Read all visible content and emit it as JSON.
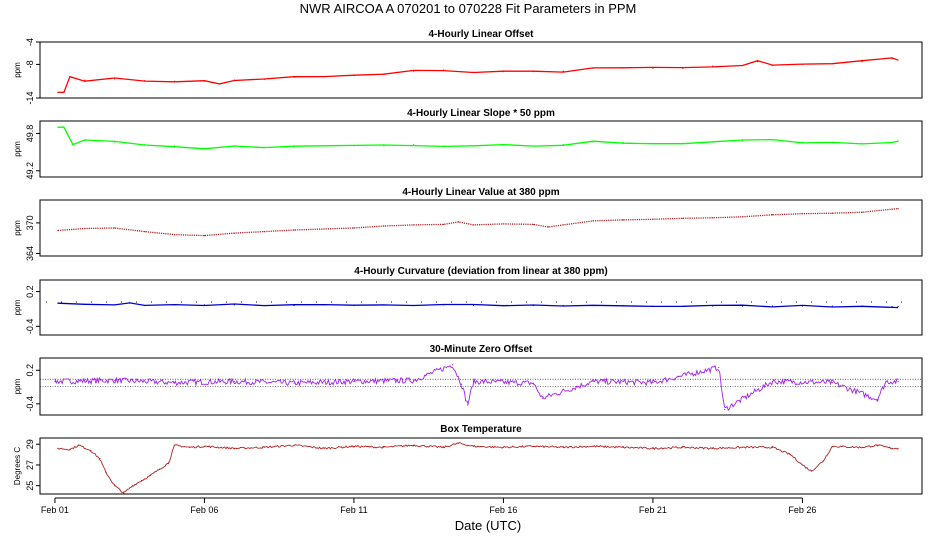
{
  "title": "NWR   AIRCOA A   070201 to 070228   Fit Parameters in PPM",
  "xlabel": "Date (UTC)",
  "chart_data": {
    "type": "line",
    "x_unit": "day of February 2007",
    "x_range": [
      -0.5,
      29.0
    ],
    "x_ticks": [
      {
        "label": "Feb 01",
        "value": 0
      },
      {
        "label": "Feb 06",
        "value": 5
      },
      {
        "label": "Feb 11",
        "value": 10
      },
      {
        "label": "Feb 16",
        "value": 15
      },
      {
        "label": "Feb 21",
        "value": 20
      },
      {
        "label": "Feb 26",
        "value": 25
      }
    ],
    "panels": [
      {
        "id": "linear-offset",
        "title": "4-Hourly Linear Offset",
        "ylabel": "ppm",
        "ylim": [
          -14,
          -4
        ],
        "yticks": [
          {
            "label": "-4",
            "value": -4
          },
          {
            "label": "-8",
            "value": -8
          },
          {
            "label": "-14",
            "value": -14
          }
        ],
        "color": "#ff0000",
        "style": "line",
        "x": [
          0.1,
          0.3,
          0.5,
          1,
          2,
          3,
          4,
          5,
          5.5,
          6,
          7,
          8,
          9,
          10,
          11,
          12,
          13,
          14,
          15,
          16,
          17,
          18,
          19,
          20,
          21,
          22,
          23,
          23.5,
          24,
          25,
          26,
          27,
          28,
          28.2
        ],
        "values": [
          -13.0,
          -13.0,
          -10.2,
          -10.8,
          -10.6,
          -10.9,
          -11.0,
          -11.0,
          -11.5,
          -10.8,
          -10.7,
          -10.3,
          -10.2,
          -10.0,
          -9.8,
          -9.2,
          -9.0,
          -9.4,
          -9.3,
          -9.3,
          -9.2,
          -8.7,
          -8.6,
          -8.7,
          -8.7,
          -8.3,
          -8.2,
          -7.5,
          -8.2,
          -8.0,
          -7.9,
          -7.5,
          -7.0,
          -7.2
        ]
      },
      {
        "id": "linear-slope",
        "title": "4-Hourly Linear Slope * 50 ppm",
        "ylabel": "ppm",
        "ylim": [
          49.1,
          50.0
        ],
        "yticks": [
          {
            "label": "49.8",
            "value": 49.8
          },
          {
            "label": "49.2",
            "value": 49.2
          }
        ],
        "color": "#00ff00",
        "style": "line",
        "x": [
          0.1,
          0.3,
          0.6,
          1,
          2,
          3,
          4,
          5,
          6,
          7,
          8,
          9,
          10,
          11,
          12,
          13,
          14,
          15,
          16,
          17,
          18,
          19,
          20,
          21,
          22,
          23,
          24,
          25,
          26,
          27,
          28,
          28.2
        ],
        "values": [
          49.9,
          49.9,
          49.62,
          49.7,
          49.66,
          49.62,
          49.6,
          49.56,
          49.6,
          49.58,
          49.58,
          49.6,
          49.6,
          49.6,
          49.62,
          49.6,
          49.6,
          49.62,
          49.6,
          49.62,
          49.66,
          49.66,
          49.64,
          49.64,
          49.66,
          49.68,
          49.7,
          49.66,
          49.66,
          49.64,
          49.66,
          49.68
        ]
      },
      {
        "id": "linear-value",
        "title": "4-Hourly Linear Value at 380 ppm",
        "ylabel": "ppm",
        "ylim": [
          363.5,
          374.5
        ],
        "yticks": [
          {
            "label": "370",
            "value": 370
          },
          {
            "label": "364",
            "value": 364
          }
        ],
        "color": "#b22222",
        "style": "dots",
        "x": [
          0.1,
          1,
          2,
          3,
          4,
          5,
          6,
          7,
          8,
          9,
          10,
          11,
          12,
          13,
          13.5,
          14,
          15,
          16,
          16.5,
          17,
          18,
          19,
          20,
          21,
          22,
          23,
          24,
          25,
          26,
          27,
          28,
          28.2
        ],
        "values": [
          368.5,
          368.9,
          369.0,
          368.3,
          367.7,
          367.5,
          368.0,
          368.3,
          368.6,
          368.8,
          369.0,
          369.4,
          369.6,
          369.7,
          370.2,
          369.6,
          369.8,
          369.7,
          369.2,
          369.6,
          370.4,
          370.6,
          370.7,
          370.9,
          371.0,
          371.2,
          371.6,
          371.8,
          371.9,
          372.1,
          372.7,
          372.8
        ]
      },
      {
        "id": "curvature",
        "title": "4-Hourly Curvature (deviation from linear at 380 ppm)",
        "ylabel": "ppm",
        "ylim": [
          -0.55,
          0.4
        ],
        "yticks": [
          {
            "label": "0.2",
            "value": 0.2
          },
          {
            "label": "-0.4",
            "value": -0.4
          }
        ],
        "color": "#0000cc",
        "style": "line",
        "reference_dotted": 0.02,
        "x": [
          0.1,
          1,
          2,
          2.5,
          3,
          4,
          5,
          6,
          7,
          8,
          9,
          10,
          11,
          12,
          13,
          14,
          15,
          16,
          17,
          18,
          19,
          20,
          21,
          22,
          23,
          24,
          25,
          26,
          27,
          28,
          28.2
        ],
        "values": [
          0.0,
          -0.02,
          -0.03,
          0.01,
          -0.04,
          -0.03,
          -0.03,
          -0.03,
          -0.04,
          -0.04,
          -0.03,
          -0.04,
          -0.03,
          -0.04,
          -0.03,
          -0.04,
          -0.04,
          -0.04,
          -0.04,
          -0.04,
          -0.04,
          -0.05,
          -0.05,
          -0.05,
          -0.05,
          -0.05,
          -0.05,
          -0.05,
          -0.05,
          -0.06,
          -0.06
        ]
      },
      {
        "id": "zero-offset",
        "title": "30-Minute Zero Offset",
        "ylabel": "ppm",
        "ylim": [
          -0.6,
          0.42
        ],
        "yticks": [
          {
            "label": "0.2",
            "value": 0.2
          },
          {
            "label": "-0.4",
            "value": -0.4
          }
        ],
        "color": "#a020f0",
        "style": "noisy",
        "reference_lines": [
          0.04,
          -0.09
        ],
        "x": [
          0,
          2,
          4,
          6,
          8,
          10,
          12,
          13.3,
          13.6,
          13.8,
          14,
          16,
          16.3,
          18,
          20,
          22.2,
          22.4,
          24,
          26,
          27.5,
          27.8,
          28.2
        ],
        "values": [
          0.0,
          0.02,
          -0.02,
          0.0,
          -0.03,
          0.0,
          0.02,
          0.3,
          -0.05,
          -0.42,
          0.0,
          -0.03,
          -0.3,
          0.0,
          -0.02,
          0.25,
          -0.5,
          0.0,
          -0.02,
          -0.32,
          0.0,
          0.0
        ]
      },
      {
        "id": "box-temperature",
        "title": "Box Temperature",
        "ylabel": "Degrees C",
        "ylim": [
          24.2,
          29.6
        ],
        "yticks": [
          {
            "label": "29",
            "value": 29
          },
          {
            "label": "27",
            "value": 27
          },
          {
            "label": "25",
            "value": 25
          }
        ],
        "color": "#b22222",
        "style": "noisy",
        "x": [
          0.1,
          0.5,
          0.8,
          1.2,
          1.5,
          1.7,
          2.0,
          2.3,
          2.6,
          2.9,
          3.2,
          3.5,
          3.8,
          4.0,
          4.5,
          5,
          6,
          7,
          8,
          9,
          10,
          11,
          12,
          13,
          13.5,
          14,
          15,
          16,
          17,
          18,
          19,
          20,
          21,
          22,
          23,
          24,
          24.6,
          25.0,
          25.3,
          25.7,
          26,
          27,
          27.5,
          28,
          28.2
        ],
        "values": [
          28.6,
          28.5,
          28.9,
          28.4,
          27.6,
          26.3,
          25.0,
          24.3,
          25.0,
          25.5,
          26.0,
          26.6,
          27.2,
          28.9,
          28.7,
          28.8,
          28.6,
          28.7,
          28.9,
          28.6,
          28.8,
          28.7,
          28.9,
          28.7,
          29.1,
          28.8,
          28.7,
          28.8,
          28.7,
          28.8,
          28.7,
          28.6,
          28.7,
          28.6,
          28.7,
          28.7,
          28.0,
          27.0,
          26.4,
          27.4,
          28.8,
          28.7,
          28.9,
          28.6,
          28.6
        ]
      }
    ]
  }
}
